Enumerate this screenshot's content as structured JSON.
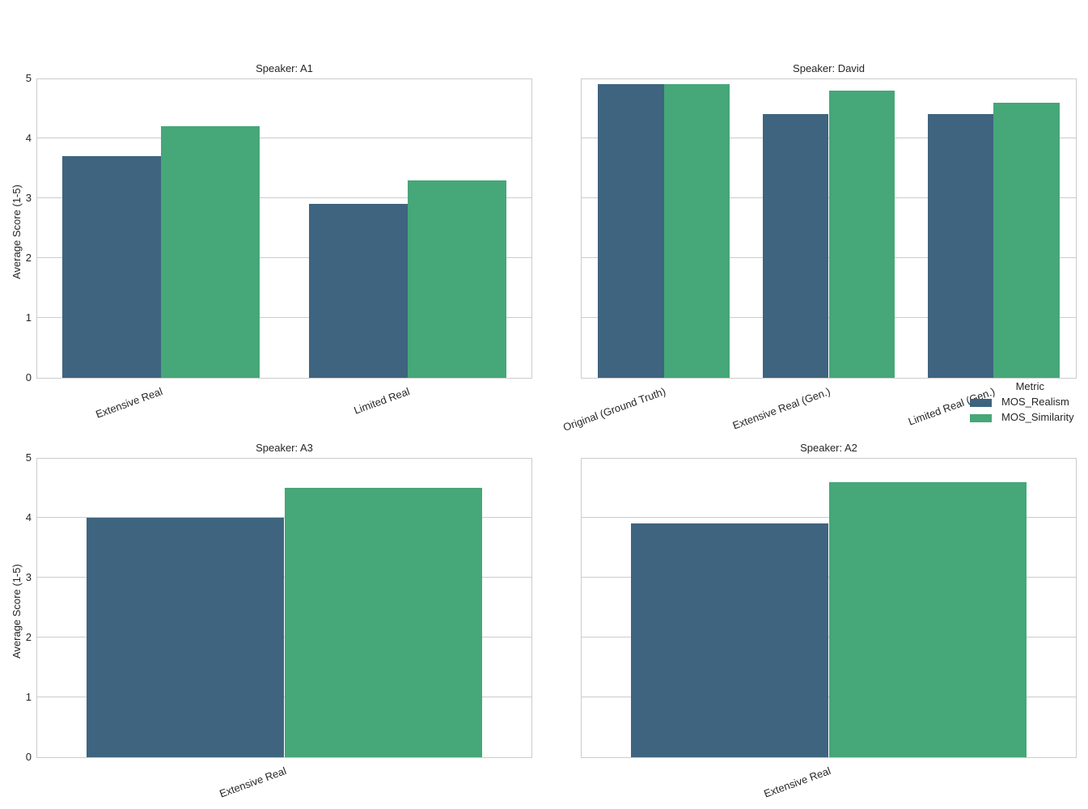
{
  "chart_data": [
    {
      "type": "bar",
      "title": "Speaker: A1",
      "categories": [
        "Extensive Real",
        "Limited Real"
      ],
      "series": [
        {
          "name": "MOS_Realism",
          "values": [
            3.7,
            2.9
          ]
        },
        {
          "name": "MOS_Similarity",
          "values": [
            4.2,
            3.3
          ]
        }
      ],
      "xlabel": "",
      "ylabel": "Average Score (1-5)",
      "ylim": [
        0,
        5
      ],
      "yticks": [
        0,
        1,
        2,
        3,
        4,
        5
      ],
      "grid": true
    },
    {
      "type": "bar",
      "title": "Speaker: David",
      "categories": [
        "Original (Ground Truth)",
        "Extensive Real (Gen.)",
        "Limited Real (Gen.)"
      ],
      "series": [
        {
          "name": "MOS_Realism",
          "values": [
            4.9,
            4.4,
            4.4
          ]
        },
        {
          "name": "MOS_Similarity",
          "values": [
            4.9,
            4.8,
            4.6
          ]
        }
      ],
      "xlabel": "",
      "ylabel": "",
      "ylim": [
        0,
        5
      ],
      "grid": true
    },
    {
      "type": "bar",
      "title": "Speaker: A3",
      "categories": [
        "Extensive Real"
      ],
      "series": [
        {
          "name": "MOS_Realism",
          "values": [
            4.0
          ]
        },
        {
          "name": "MOS_Similarity",
          "values": [
            4.5
          ]
        }
      ],
      "xlabel": "",
      "ylabel": "Average Score (1-5)",
      "ylim": [
        0,
        5
      ],
      "yticks": [
        0,
        1,
        2,
        3,
        4,
        5
      ],
      "grid": true
    },
    {
      "type": "bar",
      "title": "Speaker: A2",
      "categories": [
        "Extensive Real"
      ],
      "series": [
        {
          "name": "MOS_Realism",
          "values": [
            3.9
          ]
        },
        {
          "name": "MOS_Similarity",
          "values": [
            4.6
          ]
        }
      ],
      "xlabel": "",
      "ylabel": "",
      "ylim": [
        0,
        5
      ],
      "grid": true
    }
  ],
  "legend": {
    "title": "Metric",
    "position": "right, between rows",
    "items": [
      {
        "label": "MOS_Realism",
        "color": "#3e6480"
      },
      {
        "label": "MOS_Similarity",
        "color": "#46a778"
      }
    ]
  },
  "colors": {
    "realism": "#3e6480",
    "similarity": "#46a778",
    "grid": "#cccccc"
  }
}
